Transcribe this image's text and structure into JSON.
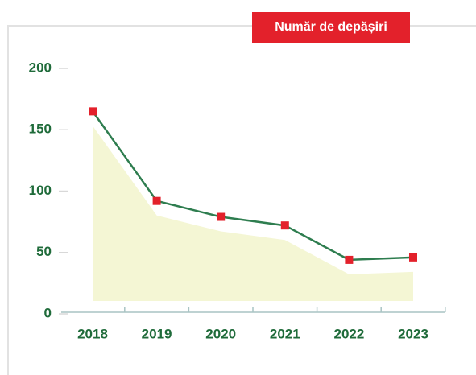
{
  "chart_data": {
    "type": "line",
    "title": "Număr de depășiri",
    "categories": [
      "2018",
      "2019",
      "2020",
      "2021",
      "2022",
      "2023"
    ],
    "series": [
      {
        "name": "Număr de depășiri",
        "color": "#2e7d4f",
        "marker_color": "#e3212b",
        "values": [
          165,
          92,
          79,
          72,
          44,
          46
        ]
      }
    ],
    "area_color": "#f4f6d4",
    "ylim": [
      0,
      200
    ],
    "yticks": [
      0,
      50,
      100,
      150,
      200
    ]
  }
}
